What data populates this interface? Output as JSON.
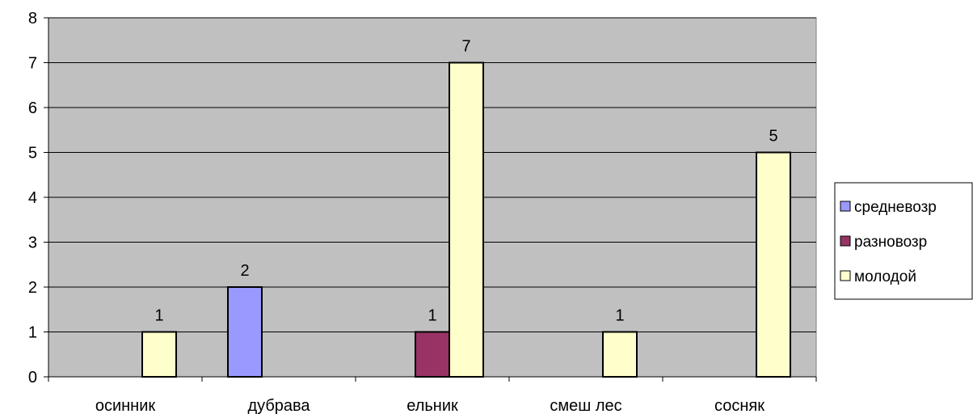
{
  "chart_data": {
    "type": "bar",
    "title": "",
    "xlabel": "",
    "ylabel": "",
    "categories": [
      "осинник",
      "дубрава",
      "ельник",
      "смеш лес",
      "сосняк"
    ],
    "series": [
      {
        "name": "средневозр",
        "color": "#9999ff",
        "values": [
          null,
          2,
          null,
          null,
          null
        ]
      },
      {
        "name": "разновозр",
        "color": "#993366",
        "values": [
          null,
          null,
          1,
          null,
          null
        ]
      },
      {
        "name": "молодой",
        "color": "#ffffcc",
        "values": [
          1,
          null,
          7,
          1,
          5
        ]
      }
    ],
    "ylim": [
      0,
      8
    ],
    "yticks": [
      "0",
      "1",
      "2",
      "3",
      "4",
      "5",
      "6",
      "7",
      "8"
    ],
    "grid": true,
    "plot_background": "#c0c0c0",
    "legend_position": "right"
  }
}
